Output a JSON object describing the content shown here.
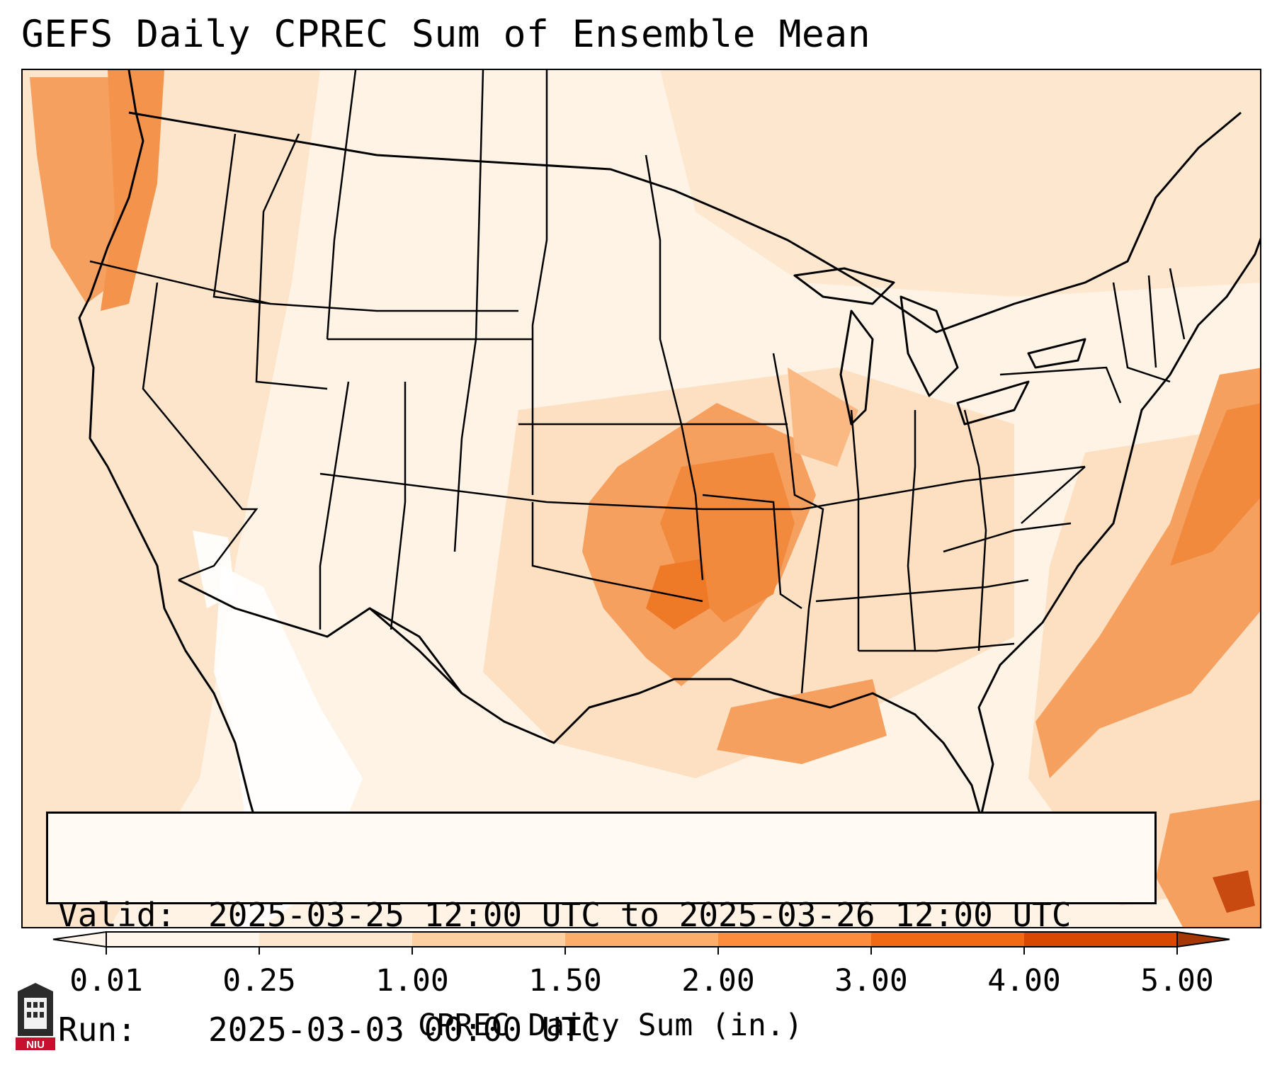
{
  "title": "GEFS Daily CPREC Sum of Ensemble Mean",
  "info": {
    "valid_label": "Valid:",
    "valid_value": "2025-03-25 12:00 UTC to 2025-03-26 12:00 UTC",
    "run_label": "Run:",
    "run_value": "2025-03-03 00:00 UTC"
  },
  "colorbar": {
    "title": "CPREC Daily Sum (in.)",
    "ticks": [
      "0.01",
      "0.25",
      "1.00",
      "1.50",
      "2.00",
      "3.00",
      "4.00",
      "5.00"
    ],
    "colors": [
      "#fff5eb",
      "#fee6ce",
      "#fdd0a2",
      "#fdae6b",
      "#fd8d3c",
      "#f16913",
      "#d94801",
      "#a63603"
    ],
    "extend": "both"
  },
  "map": {
    "region": "Contiguous United States",
    "background_color": "#fff3e6",
    "heavy_color": "#f08a3c"
  },
  "logo": {
    "text": "NIU"
  }
}
